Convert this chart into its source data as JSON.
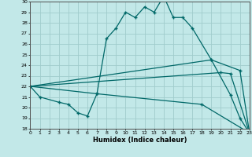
{
  "xlabel": "Humidex (Indice chaleur)",
  "bg_color": "#c2e8e8",
  "grid_color": "#a0cccc",
  "line_color": "#006868",
  "xmin": 0,
  "xmax": 23,
  "ymin": 18,
  "ymax": 30,
  "line_main_x": [
    0,
    1,
    3,
    4,
    5,
    6,
    7,
    8,
    9,
    10,
    11,
    12,
    13,
    14,
    15,
    16,
    17,
    19,
    21,
    22,
    23
  ],
  "line_main_y": [
    22,
    21,
    20.5,
    20.3,
    19.5,
    19.2,
    21.3,
    26.5,
    27.5,
    29,
    28.5,
    29.5,
    29,
    30.5,
    28.5,
    28.5,
    27.5,
    24.5,
    21.2,
    19,
    17.6
  ],
  "line2_x": [
    0,
    19,
    22,
    23
  ],
  "line2_y": [
    22,
    24.5,
    23.5,
    17.6
  ],
  "line3_x": [
    0,
    20,
    21,
    23
  ],
  "line3_y": [
    22,
    23.3,
    23.2,
    17.6
  ],
  "line4_x": [
    0,
    7,
    18,
    23
  ],
  "line4_y": [
    22,
    21.3,
    20.3,
    17.6
  ]
}
